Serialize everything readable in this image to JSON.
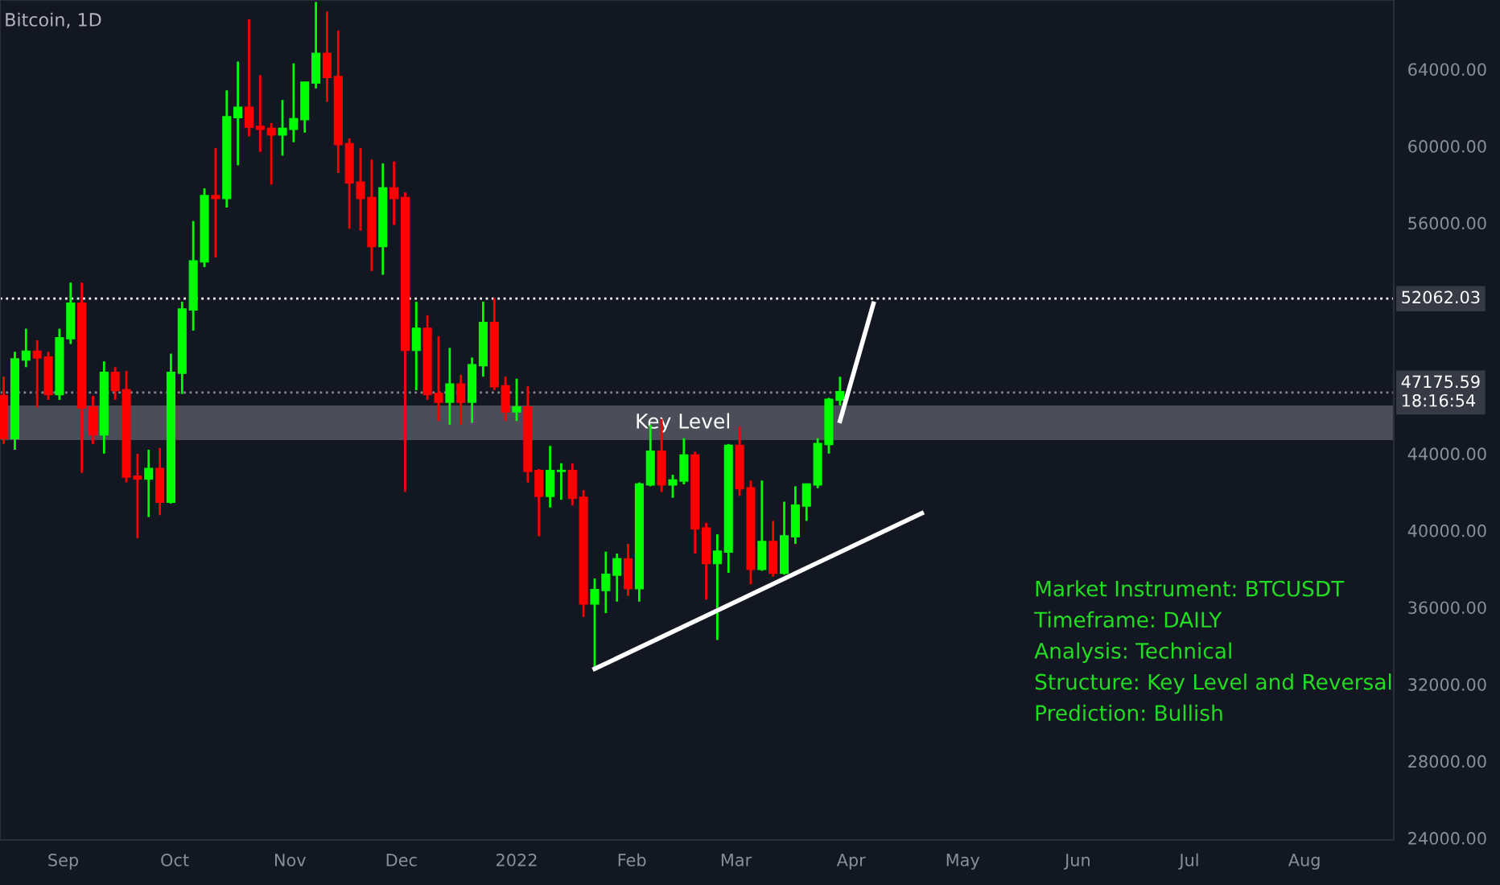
{
  "chart_data": {
    "type": "candlestick",
    "title": "Bitcoin, 1D",
    "x": [
      "2021-08-16",
      "2021-08-19",
      "2021-08-22",
      "2021-08-25",
      "2021-08-28",
      "2021-08-31",
      "2021-09-03",
      "2021-09-06",
      "2021-09-09",
      "2021-09-12",
      "2021-09-15",
      "2021-09-18",
      "2021-09-21",
      "2021-09-24",
      "2021-09-27",
      "2021-09-30",
      "2021-10-03",
      "2021-10-06",
      "2021-10-09",
      "2021-10-12",
      "2021-10-15",
      "2021-10-18",
      "2021-10-21",
      "2021-10-24",
      "2021-10-27",
      "2021-10-30",
      "2021-11-02",
      "2021-11-05",
      "2021-11-08",
      "2021-11-11",
      "2021-11-14",
      "2021-11-17",
      "2021-11-20",
      "2021-11-23",
      "2021-11-26",
      "2021-11-29",
      "2021-12-02",
      "2021-12-05",
      "2021-12-08",
      "2021-12-11",
      "2021-12-14",
      "2021-12-17",
      "2021-12-20",
      "2021-12-23",
      "2021-12-26",
      "2021-12-29",
      "2022-01-01",
      "2022-01-04",
      "2022-01-07",
      "2022-01-10",
      "2022-01-13",
      "2022-01-16",
      "2022-01-19",
      "2022-01-22",
      "2022-01-25",
      "2022-01-28",
      "2022-01-31",
      "2022-02-03",
      "2022-02-06",
      "2022-02-09",
      "2022-02-12",
      "2022-02-15",
      "2022-02-18",
      "2022-02-21",
      "2022-02-24",
      "2022-02-27",
      "2022-03-02",
      "2022-03-05",
      "2022-03-08",
      "2022-03-11",
      "2022-03-14",
      "2022-03-17",
      "2022-03-20",
      "2022-03-23",
      "2022-03-26",
      "2022-03-29"
    ],
    "ohlc": [
      [
        47000,
        48000,
        44500,
        44800
      ],
      [
        44800,
        49300,
        44200,
        48900
      ],
      [
        48900,
        50500,
        48500,
        49300
      ],
      [
        49300,
        49900,
        46400,
        49000
      ],
      [
        49000,
        49300,
        46800,
        47100
      ],
      [
        47100,
        50500,
        46800,
        50000
      ],
      [
        50000,
        52900,
        49700,
        51800
      ],
      [
        51800,
        52900,
        43000,
        46400
      ],
      [
        46400,
        47000,
        44500,
        45000
      ],
      [
        45000,
        48800,
        44000,
        48200
      ],
      [
        48200,
        48500,
        46800,
        47300
      ],
      [
        47300,
        48300,
        42500,
        42800
      ],
      [
        42800,
        44000,
        39600,
        42700
      ],
      [
        42700,
        44200,
        40700,
        43200
      ],
      [
        43200,
        44300,
        40800,
        41500
      ],
      [
        41500,
        49200,
        41400,
        48200
      ],
      [
        48200,
        51900,
        47100,
        51500
      ],
      [
        51500,
        56100,
        50400,
        54000
      ],
      [
        54000,
        57800,
        53700,
        57400
      ],
      [
        57400,
        59900,
        54200,
        57300
      ],
      [
        57300,
        62900,
        56800,
        61500
      ],
      [
        61500,
        64400,
        59000,
        62000
      ],
      [
        62000,
        66600,
        60500,
        61000
      ],
      [
        61000,
        63700,
        59700,
        60900
      ],
      [
        60900,
        61200,
        58000,
        60600
      ],
      [
        60600,
        62400,
        59500,
        60900
      ],
      [
        60900,
        64300,
        60200,
        61400
      ],
      [
        61400,
        63300,
        60700,
        63300
      ],
      [
        63300,
        67500,
        63000,
        64800
      ],
      [
        64800,
        67000,
        62300,
        63600
      ],
      [
        63600,
        66000,
        58600,
        60100
      ],
      [
        60100,
        60400,
        55700,
        58100
      ],
      [
        58100,
        59900,
        55600,
        57300
      ],
      [
        57300,
        59300,
        53500,
        54800
      ],
      [
        54800,
        59100,
        53300,
        57800
      ],
      [
        57800,
        59200,
        55900,
        57300
      ],
      [
        57300,
        57600,
        42000,
        49400
      ],
      [
        49400,
        51900,
        47300,
        50500
      ],
      [
        50500,
        51200,
        46800,
        47100
      ],
      [
        47100,
        50100,
        45700,
        46700
      ],
      [
        46700,
        49500,
        45500,
        47600
      ],
      [
        47600,
        48100,
        45500,
        46700
      ],
      [
        46700,
        49000,
        45600,
        48600
      ],
      [
        48600,
        51900,
        48000,
        50800
      ],
      [
        50800,
        52100,
        47300,
        47500
      ],
      [
        47500,
        48000,
        45700,
        46200
      ],
      [
        46200,
        47900,
        45700,
        46400
      ],
      [
        46400,
        47500,
        42500,
        43100
      ],
      [
        43100,
        43200,
        39700,
        41800
      ],
      [
        41800,
        44400,
        41200,
        43100
      ],
      [
        43100,
        43500,
        41600,
        43100
      ],
      [
        43100,
        43500,
        41300,
        41700
      ],
      [
        41700,
        42100,
        35500,
        36200
      ],
      [
        36200,
        37500,
        32900,
        36900
      ],
      [
        36900,
        38900,
        35700,
        37700
      ],
      [
        37700,
        38800,
        36300,
        38500
      ],
      [
        38500,
        39300,
        36600,
        37000
      ],
      [
        37000,
        42500,
        36300,
        42400
      ],
      [
        42400,
        45500,
        42300,
        44100
      ],
      [
        44100,
        45800,
        42000,
        42400
      ],
      [
        42400,
        42900,
        41700,
        42600
      ],
      [
        42600,
        44800,
        42400,
        43900
      ],
      [
        43900,
        44100,
        38800,
        40100
      ],
      [
        40100,
        40400,
        36400,
        38300
      ],
      [
        38300,
        39800,
        34300,
        38900
      ],
      [
        38900,
        44500,
        37800,
        44400
      ],
      [
        44400,
        45400,
        41800,
        42200
      ],
      [
        42200,
        42600,
        37200,
        38000
      ],
      [
        38000,
        42600,
        37900,
        39400
      ],
      [
        39400,
        40500,
        37600,
        37800
      ],
      [
        37800,
        41500,
        37700,
        39700
      ],
      [
        39700,
        42300,
        39300,
        41300
      ],
      [
        41300,
        42400,
        40500,
        42400
      ],
      [
        42400,
        44800,
        42200,
        44500
      ],
      [
        44500,
        46900,
        44000,
        46800
      ],
      [
        46800,
        48000,
        46500,
        47200
      ]
    ],
    "series": [
      {
        "type": "line",
        "color": "#ffffff",
        "x": [
          "2022-01-22",
          "2022-04-20"
        ],
        "values": [
          32800,
          40900
        ]
      },
      {
        "type": "line",
        "color": "#ffffff",
        "x": [
          "2022-03-29",
          "2022-04-07"
        ],
        "values": [
          45700,
          51800
        ]
      }
    ],
    "xlim": [
      "2021-08-15",
      "2022-08-25"
    ],
    "xticks": [
      {
        "value": "2021-09-01",
        "label": "Sep"
      },
      {
        "value": "2021-10-01",
        "label": "Oct"
      },
      {
        "value": "2021-11-01",
        "label": "Nov"
      },
      {
        "value": "2021-12-01",
        "label": "Dec"
      },
      {
        "value": "2022-01-01",
        "label": "2022"
      },
      {
        "value": "2022-02-01",
        "label": "Feb"
      },
      {
        "value": "2022-03-01",
        "label": "Mar"
      },
      {
        "value": "2022-04-01",
        "label": "Apr"
      },
      {
        "value": "2022-05-01",
        "label": "May"
      },
      {
        "value": "2022-06-01",
        "label": "Jun"
      },
      {
        "value": "2022-07-01",
        "label": "Jul"
      },
      {
        "value": "2022-08-01",
        "label": "Aug"
      }
    ],
    "ylim": [
      23900,
      67600
    ],
    "yticks": [
      {
        "value": 24000,
        "label": "24000.00"
      },
      {
        "value": 28000,
        "label": "28000.00"
      },
      {
        "value": 32000,
        "label": "32000.00"
      },
      {
        "value": 36000,
        "label": "36000.00"
      },
      {
        "value": 40000,
        "label": "40000.00"
      },
      {
        "value": 44000,
        "label": "44000.00"
      },
      {
        "value": 56000,
        "label": "56000.00"
      },
      {
        "value": 60000,
        "label": "60000.00"
      },
      {
        "value": 64000,
        "label": "64000.00"
      }
    ],
    "ref_lines": [
      {
        "axis": "y",
        "value": 52062.03,
        "label": "52062.03",
        "color": "#ffffff",
        "line_style": "dotted"
      },
      {
        "axis": "y",
        "value": 47175.59,
        "label": "47175.59\n18:16:54",
        "color": "#888888",
        "line_style": "dotted"
      }
    ],
    "bands": [
      {
        "axis": "y",
        "from": 44700,
        "to": 46500,
        "color": "#5a5d66"
      }
    ],
    "annotations": [
      "Key Level",
      "Market Instrument: BTCUSDT",
      "Timeframe: DAILY",
      "Analysis: Technical",
      "Structure: Key Level and Reversal",
      "Prediction: Bullish"
    ],
    "grid": false,
    "legend": false
  }
}
